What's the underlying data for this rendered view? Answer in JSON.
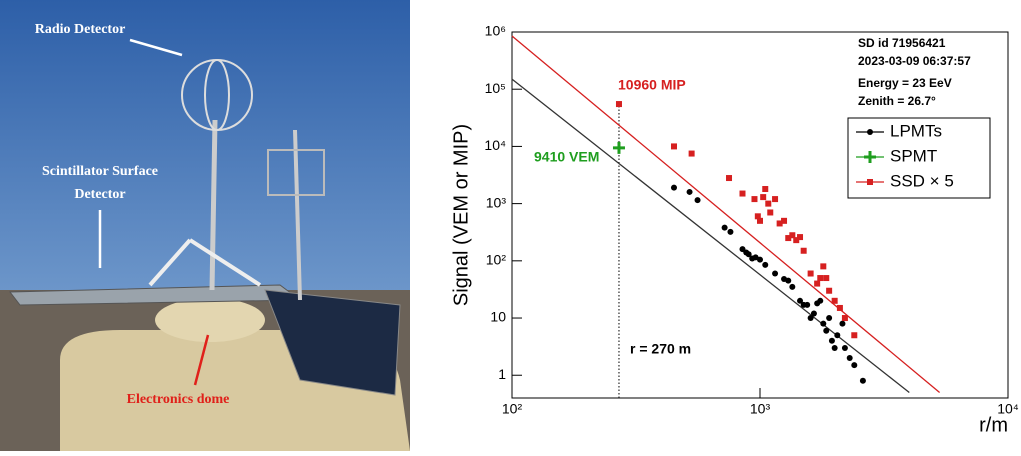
{
  "photo": {
    "labels": [
      "Radio Detector",
      "Scintillator Surface",
      "Detector",
      "Electronics dome"
    ]
  },
  "chart_data": {
    "type": "scatter",
    "y_label": "Signal (VEM or MIP)",
    "x_label": "r/m",
    "log_x": true,
    "log_y": true,
    "xlim": [
      100,
      10000
    ],
    "xticks": [
      {
        "value": 100,
        "label": "10²"
      },
      {
        "value": 1000,
        "label": "10³"
      },
      {
        "value": 10000,
        "label": "10⁴"
      }
    ],
    "ylim": [
      0.4,
      1000000
    ],
    "yticks": [
      1,
      10,
      {
        "value": 100,
        "label": "10²"
      },
      {
        "value": 1000,
        "label": "10³"
      },
      {
        "value": 10000,
        "label": "10⁴"
      },
      {
        "value": 100000,
        "label": "10⁵"
      },
      {
        "value": 1000000,
        "label": "10⁶"
      }
    ],
    "info": [
      "SD id 71956421",
      "2023-03-09 06:37:57",
      "Energy = 23 EeV",
      "Zenith = 26.7°"
    ],
    "annotations": [
      "10960 MIP",
      "9410 VEM",
      "r = 270 m"
    ],
    "marker_r": 270,
    "series": [
      {
        "name": "LPMTs",
        "color": "#000000",
        "marker": "circle",
        "x": [
          450,
          520,
          560,
          720,
          760,
          850,
          880,
          900,
          930,
          960,
          1000,
          1050,
          1150,
          1250,
          1300,
          1350,
          1450,
          1500,
          1550,
          1600,
          1650,
          1700,
          1750,
          1800,
          1850,
          1900,
          1950,
          2000,
          2050,
          2150,
          2200,
          2300,
          2400,
          2600
        ],
        "values": [
          1900,
          1600,
          1150,
          380,
          320,
          160,
          140,
          130,
          110,
          115,
          105,
          85,
          60,
          48,
          45,
          35,
          20,
          17,
          17,
          10,
          12,
          18,
          20,
          8,
          6,
          10,
          4,
          3,
          5,
          8,
          3,
          2,
          1.5,
          0.8
        ]
      },
      {
        "name": "SPMT",
        "color": "#1f9e1f",
        "marker": "plus",
        "x": [
          270
        ],
        "values": [
          9410
        ]
      },
      {
        "name": "SSD × 5",
        "color": "#d62020",
        "marker": "square",
        "x": [
          270,
          450,
          530,
          750,
          850,
          950,
          980,
          1000,
          1030,
          1050,
          1080,
          1100,
          1150,
          1200,
          1250,
          1300,
          1350,
          1400,
          1450,
          1500,
          1600,
          1700,
          1750,
          1800,
          1850,
          1900,
          2000,
          2100,
          2200,
          2400
        ],
        "values": [
          55000,
          10000,
          7500,
          2800,
          1500,
          1200,
          600,
          500,
          1300,
          1800,
          1000,
          700,
          1200,
          450,
          500,
          250,
          280,
          230,
          260,
          150,
          60,
          40,
          50,
          80,
          50,
          30,
          20,
          15,
          10,
          5
        ]
      }
    ],
    "fit_lines": [
      {
        "color": "#333333",
        "x": [
          100,
          4000
        ],
        "values": [
          150000,
          0.5
        ]
      },
      {
        "color": "#d62020",
        "x": [
          100,
          5300
        ],
        "values": [
          850000,
          0.5
        ]
      }
    ]
  }
}
